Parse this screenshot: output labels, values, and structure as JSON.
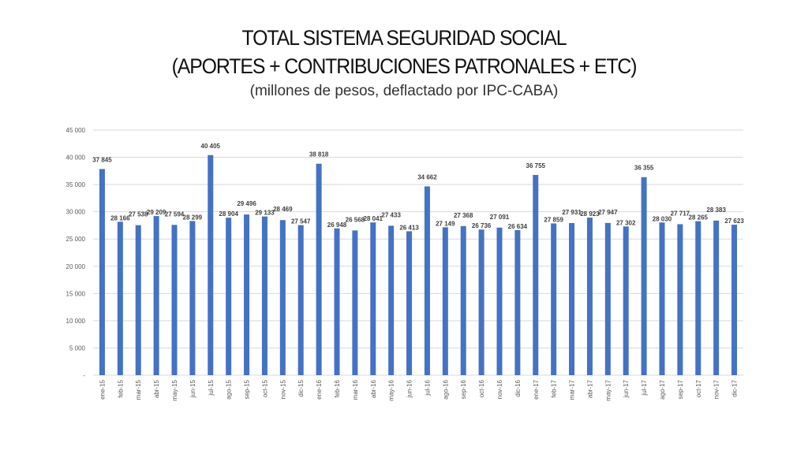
{
  "chart_data": {
    "type": "bar",
    "title": "TOTAL SISTEMA SEGURIDAD SOCIAL",
    "subtitle": "(APORTES + CONTRIBUCIONES PATRONALES + ETC)",
    "units_note": "(millones de pesos, deflactado por IPC-CABA)",
    "xlabel": "",
    "ylabel": "",
    "ylim": [
      0,
      45000
    ],
    "yticks": [
      0,
      5000,
      10000,
      15000,
      20000,
      25000,
      30000,
      35000,
      40000,
      45000
    ],
    "ytick_labels": [
      "-",
      "5 000",
      "10 000",
      "15 000",
      "20 000",
      "25 000",
      "30 000",
      "35 000",
      "40 000",
      "45 000"
    ],
    "grid": true,
    "bar_color": "#4472C4",
    "categories": [
      "ene-15",
      "feb-15",
      "mar-15",
      "abr-15",
      "may-15",
      "jun-15",
      "jul-15",
      "ago-15",
      "sep-15",
      "oct-15",
      "nov-15",
      "dic-15",
      "ene-16",
      "feb-16",
      "mar-16",
      "abr-16",
      "may-16",
      "jun-16",
      "jul-16",
      "ago-16",
      "sep-16",
      "oct-16",
      "nov-16",
      "dic-16",
      "ene-17",
      "feb-17",
      "mar-17",
      "abr-17",
      "may-17",
      "jun-17",
      "jul-17",
      "ago-17",
      "sep-17",
      "oct-17",
      "nov-17",
      "dic-17"
    ],
    "values": [
      37845,
      28166,
      27538,
      29209,
      27594,
      28299,
      40405,
      28904,
      29496,
      29133,
      28469,
      27547,
      38818,
      26948,
      26568,
      28041,
      27433,
      26413,
      34662,
      27149,
      27368,
      26736,
      27091,
      26634,
      36755,
      27859,
      27931,
      28923,
      27947,
      27302,
      36355,
      28030,
      27717,
      28265,
      28383,
      27623
    ],
    "value_labels": [
      "37 845",
      "28 166",
      "27 538",
      "29 209",
      "27 594",
      "28 299",
      "40 405",
      "28 904",
      "29 496",
      "29 133",
      "28 469",
      "27 547",
      "38 818",
      "26 948",
      "26 568",
      "28 041",
      "27 433",
      "26 413",
      "34 662",
      "27 149",
      "27 368",
      "26 736",
      "27 091",
      "26 634",
      "36 755",
      "27 859",
      "27 931",
      "28 923",
      "27 947",
      "27 302",
      "36 355",
      "28 030",
      "27 717",
      "28 265",
      "28 383",
      "27 623"
    ]
  }
}
